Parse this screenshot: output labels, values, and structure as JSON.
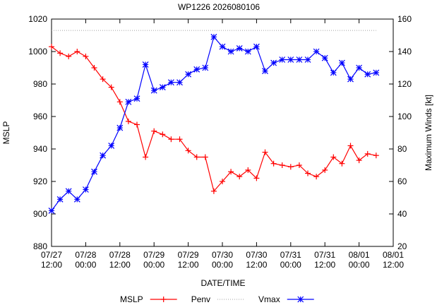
{
  "chart_data": {
    "type": "line",
    "title": "WP1226 2026080106",
    "xlabel": "DATE/TIME",
    "ylabel": "MSLP",
    "y2label": "Maximum Winds [kt]",
    "x": [
      "07/27 12:00",
      "07/27 15:00",
      "07/27 18:00",
      "07/27 21:00",
      "07/28 00:00",
      "07/28 03:00",
      "07/28 06:00",
      "07/28 09:00",
      "07/28 12:00",
      "07/28 15:00",
      "07/28 18:00",
      "07/28 21:00",
      "07/29 00:00",
      "07/29 03:00",
      "07/29 06:00",
      "07/29 09:00",
      "07/29 12:00",
      "07/29 15:00",
      "07/29 18:00",
      "07/29 21:00",
      "07/30 00:00",
      "07/30 03:00",
      "07/30 06:00",
      "07/30 09:00",
      "07/30 12:00",
      "07/30 15:00",
      "07/30 18:00",
      "07/30 21:00",
      "07/31 00:00",
      "07/31 03:00",
      "07/31 06:00",
      "07/31 09:00",
      "07/31 12:00",
      "07/31 15:00",
      "07/31 18:00",
      "07/31 21:00",
      "08/01 00:00",
      "08/01 03:00",
      "08/01 06:00"
    ],
    "series": [
      {
        "name": "MSLP",
        "color": "#ff0000",
        "marker": "plus",
        "values": [
          1003,
          999,
          997,
          1000,
          997,
          990,
          983,
          978,
          969,
          957,
          955,
          935,
          951,
          949,
          946,
          946,
          939,
          935,
          935,
          914,
          920,
          926,
          923,
          927,
          922,
          938,
          931,
          930,
          929,
          930,
          925,
          923,
          927,
          935,
          931,
          942,
          933,
          937,
          936
        ]
      },
      {
        "name": "Penv",
        "color": "#a0a0a0",
        "dash": "dotted",
        "values": [
          1013,
          1013,
          1013,
          1013,
          1013,
          1013,
          1013,
          1013,
          1013,
          1013,
          1013,
          1013,
          1013,
          1013,
          1013,
          1013,
          1013,
          1013,
          1013,
          1013,
          1013,
          1013,
          1013,
          1013,
          1013,
          1013,
          1013,
          1013,
          1013,
          1013,
          1013,
          1013,
          1013,
          1013,
          1013,
          1013,
          1013,
          1013,
          1013
        ]
      },
      {
        "name": "Vmax",
        "color": "#0000ff",
        "marker": "star",
        "axis": "y2",
        "values": [
          42,
          49,
          54,
          49,
          55,
          66,
          76,
          82,
          93,
          109,
          111,
          132,
          116,
          118,
          121,
          121,
          126,
          129,
          130,
          149,
          143,
          140,
          142,
          140,
          143,
          128,
          133,
          135,
          135,
          135,
          135,
          140,
          136,
          127,
          133,
          123,
          130,
          126,
          127
        ]
      }
    ],
    "xlim": [
      "07/27 12:00",
      "08/01 12:00"
    ],
    "xticks": [
      {
        "value": "07/27 12:00",
        "label": "07/27\n12:00"
      },
      {
        "value": "07/28 00:00",
        "label": "07/28\n00:00"
      },
      {
        "value": "07/28 12:00",
        "label": "07/28\n12:00"
      },
      {
        "value": "07/29 00:00",
        "label": "07/29\n00:00"
      },
      {
        "value": "07/29 12:00",
        "label": "07/29\n12:00"
      },
      {
        "value": "07/30 00:00",
        "label": "07/30\n00:00"
      },
      {
        "value": "07/30 12:00",
        "label": "07/30\n12:00"
      },
      {
        "value": "07/31 00:00",
        "label": "07/31\n00:00"
      },
      {
        "value": "07/31 12:00",
        "label": "07/31\n12:00"
      },
      {
        "value": "08/01 00:00",
        "label": "08/01\n00:00"
      },
      {
        "value": "08/01 12:00",
        "label": "08/01\n12:00"
      }
    ],
    "ylim": [
      880,
      1020
    ],
    "yticks": [
      880,
      900,
      920,
      940,
      960,
      980,
      1000,
      1020
    ],
    "y2lim": [
      20,
      160
    ],
    "y2ticks": [
      20,
      40,
      60,
      80,
      100,
      120,
      140,
      160
    ],
    "legend": "bottom"
  }
}
